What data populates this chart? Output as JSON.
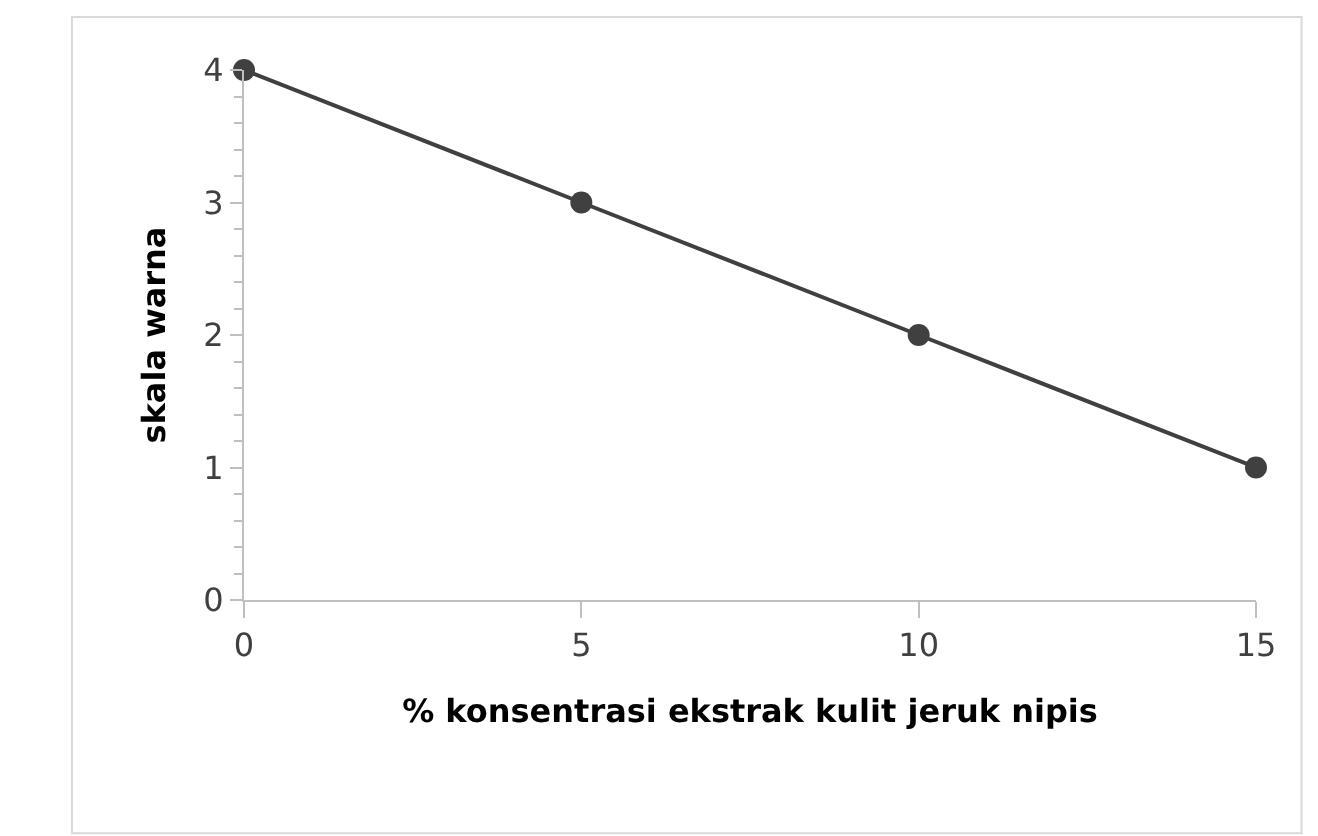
{
  "chart_data": {
    "type": "line",
    "xlabel": "% konsentrasi ekstrak kulit jeruk nipis",
    "ylabel": "skala warna",
    "x": [
      0,
      5,
      10,
      15
    ],
    "series": [
      {
        "color": "#404040",
        "values": [
          4,
          3,
          2,
          1
        ]
      }
    ],
    "xlim": [
      0,
      15
    ],
    "xticks": [
      0,
      5,
      10,
      15
    ],
    "ylim": [
      0,
      4
    ],
    "yticks": [
      0,
      1,
      2,
      3,
      4
    ],
    "legend": false,
    "marker": "circle",
    "line_style": "solid"
  }
}
